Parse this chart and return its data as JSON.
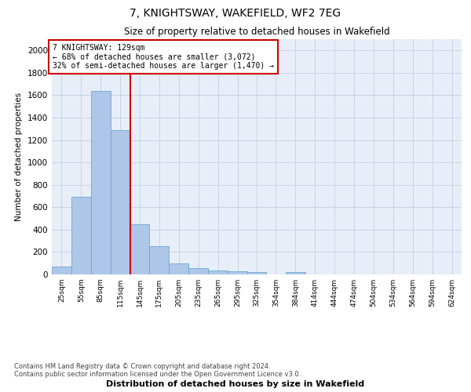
{
  "title": "7, KNIGHTSWAY, WAKEFIELD, WF2 7EG",
  "subtitle": "Size of property relative to detached houses in Wakefield",
  "xlabel": "Distribution of detached houses by size in Wakefield",
  "ylabel": "Number of detached properties",
  "footer_line1": "Contains HM Land Registry data © Crown copyright and database right 2024.",
  "footer_line2": "Contains public sector information licensed under the Open Government Licence v3.0.",
  "annotation_title": "7 KNIGHTSWAY: 129sqm",
  "annotation_line2": "← 68% of detached houses are smaller (3,072)",
  "annotation_line3": "32% of semi-detached houses are larger (1,470) →",
  "categories": [
    "25sqm",
    "55sqm",
    "85sqm",
    "115sqm",
    "145sqm",
    "175sqm",
    "205sqm",
    "235sqm",
    "265sqm",
    "295sqm",
    "325sqm",
    "354sqm",
    "384sqm",
    "414sqm",
    "444sqm",
    "474sqm",
    "504sqm",
    "534sqm",
    "564sqm",
    "594sqm",
    "624sqm"
  ],
  "bin_edges": [
    10,
    40,
    70,
    100,
    130,
    160,
    190,
    220,
    250,
    280,
    310,
    339,
    369,
    399,
    429,
    459,
    489,
    519,
    549,
    579,
    609,
    639
  ],
  "values": [
    68,
    695,
    1635,
    1285,
    447,
    253,
    100,
    55,
    38,
    28,
    20,
    0,
    20,
    0,
    0,
    0,
    0,
    0,
    0,
    0,
    0
  ],
  "bar_color": "#aec6e8",
  "bar_edge_color": "#6aaad4",
  "vline_color": "#cc0000",
  "annotation_box_color": "#cc0000",
  "grid_color": "#c8d4e8",
  "background_color": "#e8eef8",
  "ylim": [
    0,
    2100
  ],
  "yticks": [
    0,
    200,
    400,
    600,
    800,
    1000,
    1200,
    1400,
    1600,
    1800,
    2000
  ]
}
